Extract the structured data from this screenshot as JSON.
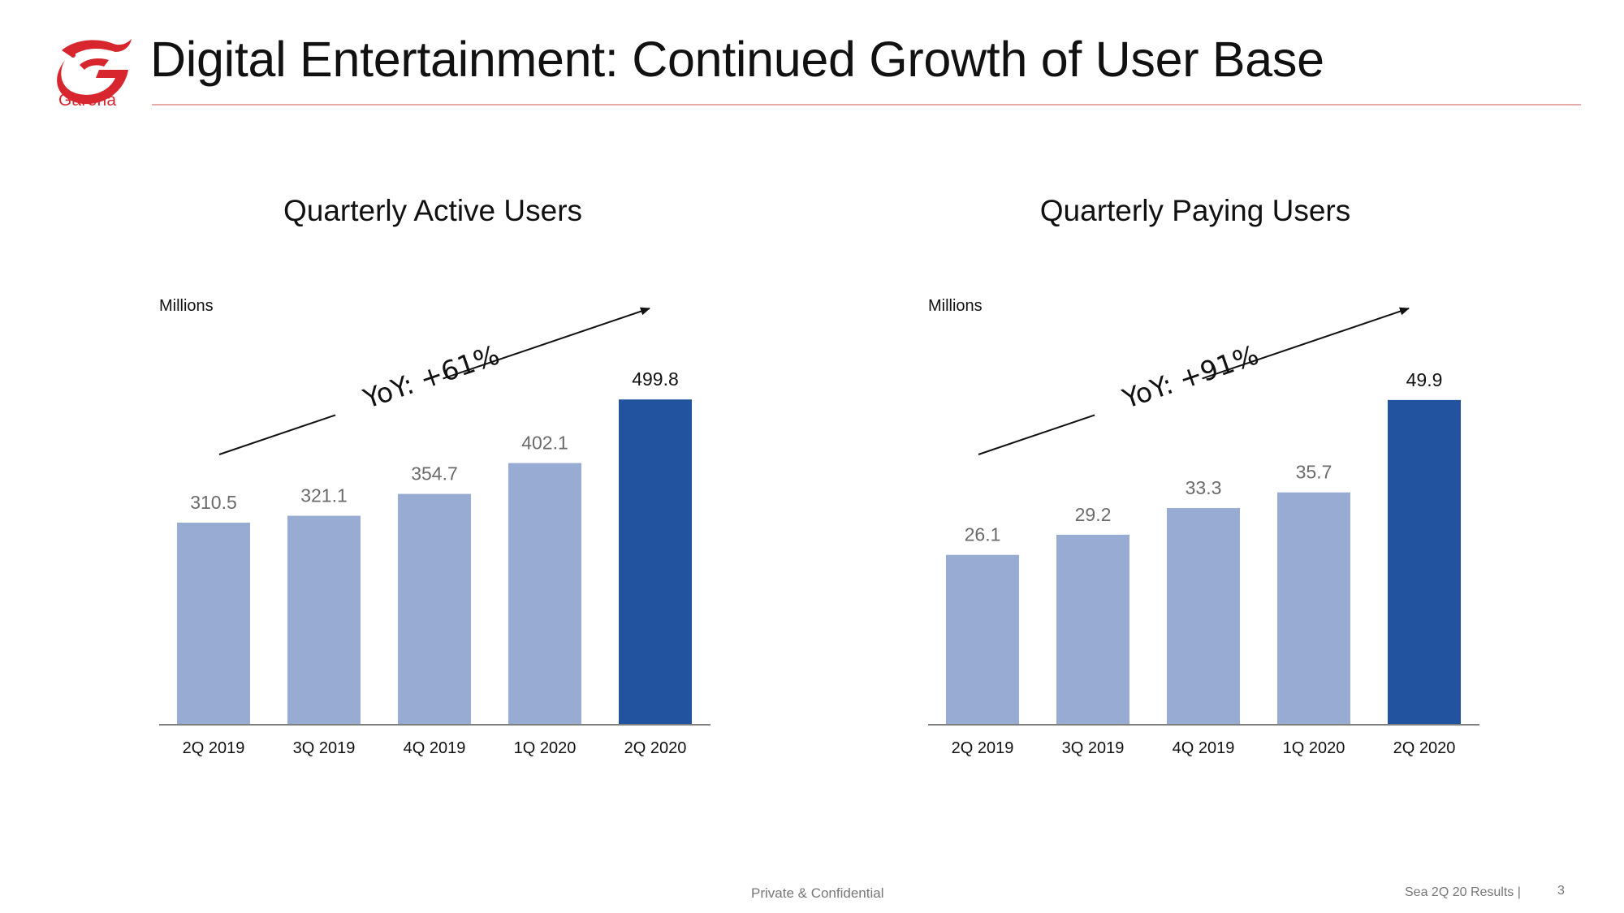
{
  "header": {
    "title": "Digital Entertainment: Continued Growth of User Base",
    "logo_text": "Garena",
    "brand_color": "#d8262e"
  },
  "footer": {
    "confidential": "Private & Confidential",
    "results_label": "Sea 2Q 20 Results |",
    "page_number": "3"
  },
  "colors": {
    "bar_light": "#98acd3",
    "bar_dark": "#22539f",
    "axis": "#7f7f7f",
    "label_grey": "#6b6b6b"
  },
  "chart_data": [
    {
      "type": "bar",
      "title": "Quarterly Active Users",
      "unit_label": "Millions",
      "categories": [
        "2Q 2019",
        "3Q 2019",
        "4Q 2019",
        "1Q 2020",
        "2Q 2020"
      ],
      "values": [
        310.5,
        321.1,
        354.7,
        402.1,
        499.8
      ],
      "value_labels": [
        "310.5",
        "321.1",
        "354.7",
        "402.1",
        "499.8"
      ],
      "highlight_index": 4,
      "annotation": "YoY: +61%",
      "ylim": [
        0,
        540
      ]
    },
    {
      "type": "bar",
      "title": "Quarterly Paying Users",
      "unit_label": "Millions",
      "categories": [
        "2Q 2019",
        "3Q 2019",
        "4Q 2019",
        "1Q 2020",
        "2Q 2020"
      ],
      "values": [
        26.1,
        29.2,
        33.3,
        35.7,
        49.9
      ],
      "value_labels": [
        "26.1",
        "29.2",
        "33.3",
        "35.7",
        "49.9"
      ],
      "highlight_index": 4,
      "annotation": "YoY: +91%",
      "ylim": [
        0,
        54
      ]
    }
  ]
}
